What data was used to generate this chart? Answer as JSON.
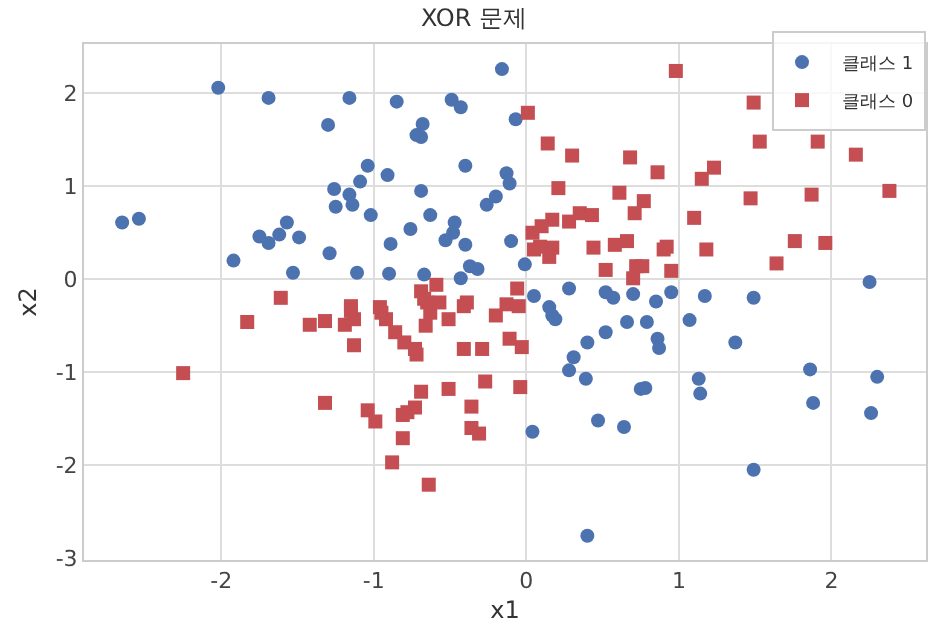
{
  "chart_data": {
    "type": "scatter",
    "title": "XOR 문제",
    "xlabel": "x1",
    "ylabel": "x2",
    "xlim": [
      -2.9,
      2.62
    ],
    "ylim": [
      -3.02,
      2.53
    ],
    "xticks": [
      -2,
      -1,
      0,
      1,
      2
    ],
    "yticks": [
      -3,
      -2,
      -1,
      0,
      1,
      2
    ],
    "grid": true,
    "legend": "top right",
    "series": [
      {
        "name": "클래스 1",
        "color": "#4c72b0",
        "marker": "circle",
        "x": [
          -2.02,
          -1.69,
          -1.16,
          -1.3,
          -1.26,
          -1.16,
          -1.25,
          -1.14,
          -2.65,
          -2.54,
          -1.57,
          -1.75,
          -1.69,
          -1.62,
          -1.49,
          -1.29,
          -1.92,
          -1.53,
          -1.11,
          -1.09,
          -0.16,
          -0.85,
          -0.49,
          -0.43,
          -0.68,
          -0.72,
          -0.69,
          -0.07,
          -1.04,
          -0.91,
          -0.4,
          -0.13,
          -0.11,
          -0.69,
          -1.02,
          -0.2,
          -0.26,
          -0.63,
          -0.47,
          -0.76,
          -0.48,
          -0.53,
          -0.4,
          -0.89,
          -0.1,
          -0.01,
          -0.9,
          -0.67,
          -0.37,
          -0.32,
          -0.43,
          0.05,
          0.28,
          0.52,
          0.57,
          0.7,
          0.15,
          2.25,
          0.85,
          0.95,
          1.17,
          1.49,
          0.17,
          0.19,
          0.4,
          0.52,
          0.66,
          0.31,
          0.28,
          0.39,
          0.47,
          0.64,
          0.04,
          0.4,
          0.79,
          1.07,
          0.86,
          0.87,
          1.37,
          0.75,
          0.78,
          1.13,
          1.14,
          1.86,
          2.3,
          1.88,
          2.26,
          1.49
        ],
        "values": [
          2.06,
          1.95,
          1.95,
          1.66,
          0.97,
          0.91,
          0.78,
          0.8,
          0.61,
          0.65,
          0.61,
          0.46,
          0.39,
          0.48,
          0.45,
          0.28,
          0.2,
          0.07,
          0.07,
          1.05,
          2.26,
          1.91,
          1.93,
          1.85,
          1.67,
          1.55,
          1.53,
          1.72,
          1.22,
          1.12,
          1.22,
          1.14,
          1.03,
          0.95,
          0.69,
          0.89,
          0.8,
          0.69,
          0.61,
          0.54,
          0.5,
          0.42,
          0.37,
          0.38,
          0.41,
          0.16,
          0.06,
          0.05,
          0.14,
          0.11,
          0.01,
          -0.18,
          -0.1,
          -0.14,
          -0.2,
          -0.16,
          -0.3,
          -0.03,
          -0.24,
          -0.14,
          -0.18,
          -0.2,
          -0.39,
          -0.43,
          -0.68,
          -0.57,
          -0.46,
          -0.84,
          -0.98,
          -1.07,
          -1.52,
          -1.59,
          -1.64,
          -2.76,
          -0.46,
          -0.44,
          -0.64,
          -0.74,
          -0.68,
          -1.18,
          -1.17,
          -1.07,
          -1.23,
          -0.97,
          -1.05,
          -1.33,
          -1.44,
          -2.05
        ]
      },
      {
        "name": "클래스 0",
        "color": "#c44e52",
        "marker": "square",
        "x": [
          0.01,
          0.14,
          0.3,
          0.68,
          0.21,
          0.61,
          0.71,
          0.17,
          0.1,
          0.04,
          0.28,
          0.35,
          0.43,
          0.09,
          0.17,
          0.05,
          0.15,
          0.44,
          0.58,
          0.66,
          0.52,
          -0.69,
          -0.59,
          -0.65,
          -0.39,
          -0.06,
          -1.15,
          -0.96,
          -0.13,
          0.98,
          1.49,
          1.53,
          1.91,
          2.16,
          0.86,
          1.15,
          1.23,
          2.38,
          1.87,
          1.47,
          0.77,
          1.1,
          1.76,
          1.96,
          1.64,
          0.92,
          0.9,
          1.18,
          0.95,
          0.72,
          0.76,
          0.7,
          -1.61,
          -1.83,
          -1.42,
          -1.32,
          -1.19,
          -1.13,
          -2.25,
          -1.32,
          -1.15,
          -1.13,
          -0.95,
          -0.92,
          -0.86,
          -0.8,
          -0.72,
          -0.73,
          -0.67,
          -0.63,
          -0.66,
          -0.57,
          -0.51,
          -0.41,
          -0.41,
          -0.29,
          -0.2,
          -0.05,
          -0.11,
          -0.03,
          -0.27,
          -0.51,
          -0.04,
          -0.69,
          -0.73,
          -0.78,
          -0.81,
          -1.04,
          -0.99,
          -0.36,
          -0.36,
          -0.31,
          -0.81,
          -0.88,
          -0.64
        ],
        "values": [
          1.79,
          1.46,
          1.33,
          1.31,
          0.98,
          0.93,
          0.71,
          0.64,
          0.57,
          0.5,
          0.62,
          0.71,
          0.69,
          0.35,
          0.34,
          0.32,
          0.24,
          0.34,
          0.37,
          0.41,
          0.1,
          -0.13,
          -0.06,
          -0.25,
          -0.25,
          -0.1,
          -0.29,
          -0.3,
          -0.27,
          2.24,
          1.9,
          1.48,
          1.48,
          1.34,
          1.15,
          1.08,
          1.2,
          0.95,
          0.91,
          0.87,
          0.84,
          0.66,
          0.41,
          0.39,
          0.17,
          0.35,
          0.32,
          0.32,
          0.09,
          0.14,
          0.14,
          0.01,
          -0.2,
          -0.46,
          -0.49,
          -0.45,
          -0.49,
          -0.71,
          -1.01,
          -1.33,
          -0.34,
          -0.43,
          -0.36,
          -0.43,
          -0.57,
          -0.68,
          -0.81,
          -0.75,
          -0.21,
          -0.36,
          -0.5,
          -0.25,
          -0.43,
          -0.29,
          -0.75,
          -0.75,
          -0.39,
          -0.29,
          -0.64,
          -0.73,
          -1.1,
          -1.18,
          -1.16,
          -1.21,
          -1.38,
          -1.43,
          -1.46,
          -1.41,
          -1.53,
          -1.37,
          -1.6,
          -1.66,
          -1.71,
          -1.97,
          -2.21
        ]
      }
    ]
  }
}
